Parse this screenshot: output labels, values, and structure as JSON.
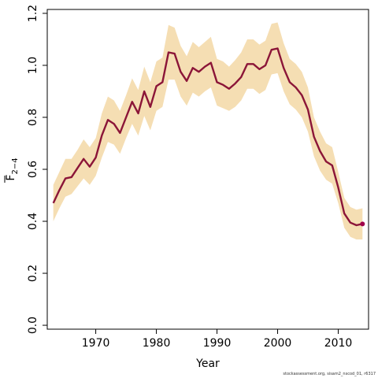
{
  "chart_data": {
    "type": "line",
    "title": "",
    "xlabel": "Year",
    "ylabel": "F",
    "ylabel_subscript": "2−4",
    "xlim": [
      1962,
      2015
    ],
    "ylim": [
      -0.015,
      1.215
    ],
    "x_ticks": [
      1970,
      1980,
      1990,
      2000,
      2010
    ],
    "x_tick_labels": [
      "1970",
      "1980",
      "1990",
      "2000",
      "2010"
    ],
    "y_ticks": [
      0.0,
      0.2,
      0.4,
      0.6,
      0.8,
      1.0,
      1.2
    ],
    "y_tick_labels": [
      "0.0",
      "0.2",
      "0.4",
      "0.6",
      "0.8",
      "1.0",
      "1.2"
    ],
    "grid": false,
    "colors": {
      "line": "#8B1538",
      "band": "#F5DEB3",
      "axis": "#000000",
      "last_point": "#A0004A"
    },
    "series": [
      {
        "x": [
          1963,
          1964,
          1965,
          1966,
          1967,
          1968,
          1969,
          1970,
          1971,
          1972,
          1973,
          1974,
          1975,
          1976,
          1977,
          1978,
          1979,
          1980,
          1981,
          1982,
          1983,
          1984,
          1985,
          1986,
          1987,
          1988,
          1989,
          1990,
          1991,
          1992,
          1993,
          1994,
          1995,
          1996,
          1997,
          1998,
          1999,
          2000,
          2001,
          2002,
          2003,
          2004,
          2005,
          2006,
          2007,
          2008,
          2009,
          2010,
          2011,
          2012,
          2013,
          2014
        ],
        "values": [
          0.47,
          0.52,
          0.565,
          0.57,
          0.605,
          0.64,
          0.61,
          0.645,
          0.73,
          0.79,
          0.775,
          0.74,
          0.8,
          0.86,
          0.815,
          0.9,
          0.84,
          0.92,
          0.935,
          1.05,
          1.045,
          0.975,
          0.94,
          0.99,
          0.975,
          0.995,
          1.01,
          0.935,
          0.925,
          0.91,
          0.93,
          0.955,
          1.005,
          1.005,
          0.985,
          1.0,
          1.06,
          1.065,
          0.99,
          0.935,
          0.915,
          0.885,
          0.83,
          0.725,
          0.67,
          0.63,
          0.615,
          0.53,
          0.43,
          0.395,
          0.385,
          0.39
        ],
        "lower": [
          0.4,
          0.45,
          0.495,
          0.505,
          0.535,
          0.565,
          0.54,
          0.575,
          0.645,
          0.705,
          0.695,
          0.66,
          0.72,
          0.775,
          0.73,
          0.805,
          0.75,
          0.825,
          0.84,
          0.945,
          0.945,
          0.88,
          0.845,
          0.895,
          0.88,
          0.9,
          0.915,
          0.845,
          0.835,
          0.825,
          0.84,
          0.865,
          0.91,
          0.91,
          0.89,
          0.905,
          0.965,
          0.97,
          0.9,
          0.85,
          0.83,
          0.8,
          0.745,
          0.65,
          0.595,
          0.56,
          0.545,
          0.47,
          0.375,
          0.34,
          0.33,
          0.33
        ],
        "upper": [
          0.54,
          0.59,
          0.64,
          0.64,
          0.675,
          0.715,
          0.685,
          0.72,
          0.815,
          0.88,
          0.865,
          0.825,
          0.885,
          0.95,
          0.905,
          0.995,
          0.935,
          1.015,
          1.03,
          1.155,
          1.145,
          1.075,
          1.035,
          1.09,
          1.07,
          1.09,
          1.11,
          1.025,
          1.015,
          0.995,
          1.02,
          1.05,
          1.1,
          1.1,
          1.08,
          1.095,
          1.16,
          1.165,
          1.085,
          1.025,
          1.005,
          0.975,
          0.915,
          0.8,
          0.745,
          0.7,
          0.685,
          0.59,
          0.49,
          0.455,
          0.445,
          0.45
        ]
      }
    ]
  },
  "footer": "stockassessment.org,  sisam2_nscod_01,  r6317"
}
